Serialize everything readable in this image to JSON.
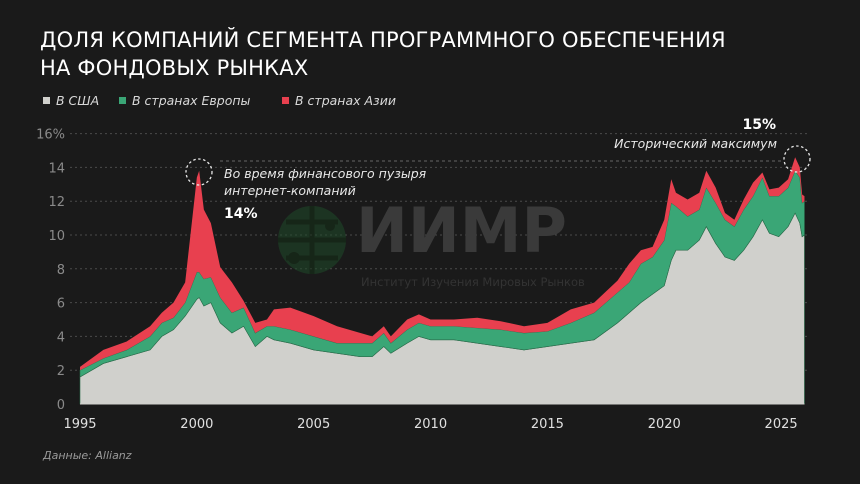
{
  "title_line1": "ДОЛЯ КОМПАНИЙ СЕГМЕНТА ПРОГРАММНОГО ОБЕСПЕЧЕНИЯ",
  "title_line2": "НА ФОНДОВЫХ РЫНКАХ",
  "source": "Данные: Allianz",
  "watermark": {
    "name": "ИИМР",
    "subtitle": "Институт Изучения Мировых Рынков"
  },
  "annotations": {
    "bubble_text_1": "Во время финансового пузыря",
    "bubble_text_2": "интернет-компаний",
    "bubble_value": "14%",
    "max_value": "15%",
    "max_text": "Исторический максимум"
  },
  "chart_data": {
    "type": "area",
    "stacked": true,
    "ylim": [
      0,
      16
    ],
    "xlim": [
      1995,
      2026
    ],
    "yticks": [
      "0",
      "2",
      "4",
      "6",
      "8",
      "10",
      "12",
      "14",
      "16%"
    ],
    "xticks": [
      "1995",
      "2000",
      "2005",
      "2010",
      "2015",
      "2020",
      "2025"
    ],
    "grid": true,
    "legend_position": "top-left",
    "x": [
      1995.0,
      1996,
      1997,
      1998,
      1998.5,
      1999,
      1999.5,
      2000.0,
      2000.1,
      2000.3,
      2000.6,
      2001.0,
      2001.5,
      2002.0,
      2002.5,
      2003.0,
      2003.3,
      2004,
      2005,
      2006,
      2007,
      2007.5,
      2008,
      2008.3,
      2009,
      2009.5,
      2010,
      2011,
      2012,
      2013,
      2014,
      2015,
      2016,
      2017,
      2018,
      2018.5,
      2019,
      2019.5,
      2020.0,
      2020.3,
      2020.5,
      2021,
      2021.5,
      2021.8,
      2022.2,
      2022.6,
      2023,
      2023.4,
      2023.8,
      2024.2,
      2024.5,
      2024.9,
      2025.3,
      2025.6,
      2025.8,
      2025.9,
      2026.0
    ],
    "series": [
      {
        "name": "В США",
        "color": "#d0d0cc",
        "values": [
          1.6,
          2.4,
          2.8,
          3.2,
          4.0,
          4.4,
          5.2,
          6.2,
          6.3,
          5.8,
          6.0,
          4.8,
          4.2,
          4.6,
          3.4,
          4.0,
          3.8,
          3.6,
          3.2,
          3.0,
          2.8,
          2.8,
          3.4,
          3.0,
          3.6,
          4.0,
          3.8,
          3.8,
          3.6,
          3.4,
          3.2,
          3.4,
          3.6,
          3.8,
          4.8,
          5.4,
          6.0,
          6.5,
          7.0,
          8.5,
          9.1,
          9.1,
          9.7,
          10.5,
          9.5,
          8.7,
          8.5,
          9.1,
          9.9,
          10.9,
          10.1,
          9.9,
          10.5,
          11.3,
          10.7,
          9.9,
          10.0
        ]
      },
      {
        "name": "В странах Европы",
        "color": "#3aa676",
        "values": [
          0.4,
          0.3,
          0.4,
          0.8,
          0.8,
          0.7,
          0.8,
          1.6,
          1.5,
          1.6,
          1.5,
          1.5,
          1.2,
          1.1,
          0.8,
          0.6,
          0.8,
          0.8,
          0.8,
          0.6,
          0.8,
          0.8,
          0.8,
          0.6,
          0.8,
          0.8,
          0.8,
          0.8,
          0.9,
          1.0,
          1.0,
          0.9,
          1.2,
          1.6,
          1.8,
          1.8,
          2.3,
          2.2,
          2.7,
          3.4,
          2.6,
          2.0,
          1.8,
          2.3,
          2.4,
          2.2,
          2.0,
          2.4,
          2.4,
          2.5,
          2.2,
          2.4,
          2.3,
          2.5,
          2.7,
          2.0,
          2.0
        ]
      },
      {
        "name": "В странах Азии",
        "color": "#e8404f",
        "values": [
          0.2,
          0.5,
          0.5,
          0.6,
          0.6,
          0.9,
          1.2,
          5.6,
          6.0,
          4.1,
          3.2,
          1.8,
          1.8,
          0.4,
          0.6,
          0.4,
          1.0,
          1.3,
          1.2,
          1.0,
          0.6,
          0.4,
          0.4,
          0.4,
          0.6,
          0.5,
          0.4,
          0.4,
          0.6,
          0.5,
          0.4,
          0.5,
          0.8,
          0.6,
          0.7,
          1.1,
          0.8,
          0.6,
          1.2,
          1.4,
          0.8,
          1.0,
          1.0,
          1.0,
          0.9,
          0.4,
          0.4,
          0.6,
          0.8,
          0.3,
          0.4,
          0.5,
          0.5,
          0.8,
          0.6,
          0.5,
          0.3
        ]
      }
    ]
  }
}
